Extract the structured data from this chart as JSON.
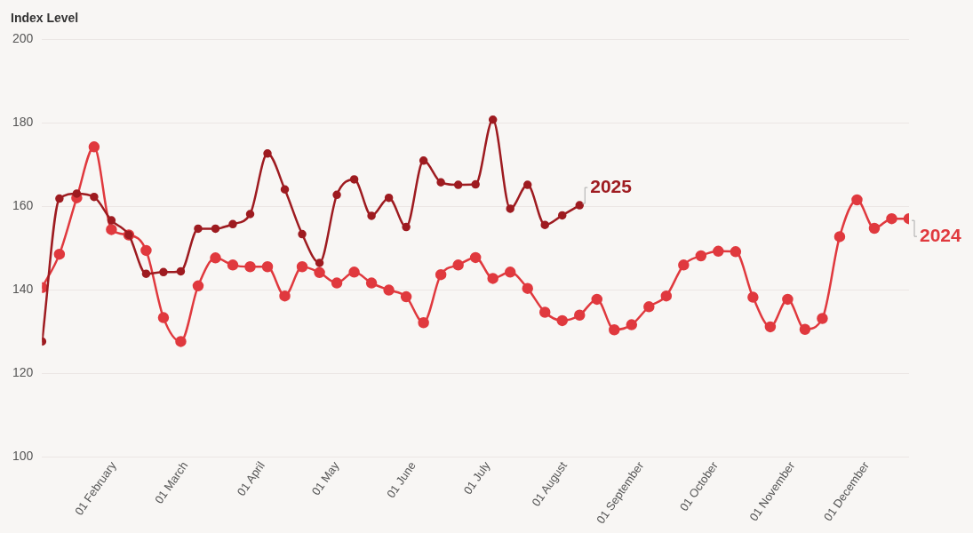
{
  "chart_data": {
    "type": "line",
    "ylabel": "Index Level",
    "x": [
      "--01-03",
      "--01-10",
      "--01-17",
      "--01-24",
      "--01-31",
      "--02-07",
      "--02-14",
      "--02-21",
      "--02-28",
      "--03-06",
      "--03-13",
      "--03-20",
      "--03-27",
      "--04-03",
      "--04-10",
      "--04-17",
      "--04-24",
      "--05-01",
      "--05-08",
      "--05-15",
      "--05-22",
      "--05-29",
      "--06-05",
      "--06-12",
      "--06-19",
      "--06-26",
      "--07-03",
      "--07-10",
      "--07-17",
      "--07-24",
      "--07-31",
      "--08-07",
      "--08-14",
      "--08-21",
      "--08-28",
      "--09-04",
      "--09-11",
      "--09-18",
      "--09-25",
      "--10-02",
      "--10-09",
      "--10-16",
      "--10-23",
      "--10-30",
      "--11-06",
      "--11-13",
      "--11-20",
      "--11-27",
      "--12-04",
      "--12-11",
      "--12-18"
    ],
    "series": [
      {
        "name": "2025",
        "color": "#9e1b20",
        "x": [
          "--01-03",
          "--01-10",
          "--01-17",
          "--01-24",
          "--01-31",
          "--02-07",
          "--02-14",
          "--02-21",
          "--02-28",
          "--03-06",
          "--03-13",
          "--03-20",
          "--03-27",
          "--04-03",
          "--04-10",
          "--04-17",
          "--04-24",
          "--05-01",
          "--05-08",
          "--05-15",
          "--05-22",
          "--05-29",
          "--06-05",
          "--06-12",
          "--06-19",
          "--06-26",
          "--07-03",
          "--07-10",
          "--07-17",
          "--07-24",
          "--07-31",
          "--08-07"
        ],
        "values": [
          127.6,
          161.8,
          163,
          162.2,
          156.6,
          153.1,
          143.8,
          144.2,
          144.4,
          154.6,
          154.6,
          155.7,
          158.1,
          172.6,
          164,
          153.3,
          146.4,
          162.7,
          166.4,
          157.7,
          162,
          155,
          170.9,
          165.7,
          165.1,
          165.2,
          180.7,
          159.4,
          165.1,
          155.5,
          157.8,
          160.2
        ]
      },
      {
        "name": "2024",
        "color": "#e0393e",
        "values": [
          140.5,
          148.5,
          162,
          174.2,
          154.4,
          153.1,
          149.4,
          133.3,
          127.6,
          140.9,
          147.6,
          145.9,
          145.5,
          145.5,
          138.5,
          145.5,
          144.1,
          141.6,
          144.2,
          141.6,
          139.9,
          138.3,
          132.1,
          143.6,
          145.9,
          147.7,
          142.7,
          144.2,
          140.3,
          134.6,
          132.6,
          133.9,
          137.7,
          130.4,
          131.6,
          135.9,
          138.5,
          145.9,
          148.1,
          149.2,
          149.1,
          138.2,
          131.1,
          137.7,
          130.5,
          133.1,
          152.7,
          161.5,
          154.7,
          157,
          157
        ]
      }
    ],
    "xlim": [
      "--01-03",
      "--12-18"
    ],
    "xticks": [
      {
        "value": "--02-01",
        "label": "01 February"
      },
      {
        "value": "--03-01",
        "label": "01 March"
      },
      {
        "value": "--04-01",
        "label": "01 April"
      },
      {
        "value": "--05-01",
        "label": "01 May"
      },
      {
        "value": "--06-01",
        "label": "01 June"
      },
      {
        "value": "--07-01",
        "label": "01 July"
      },
      {
        "value": "--08-01",
        "label": "01 August"
      },
      {
        "value": "--09-01",
        "label": "01 September"
      },
      {
        "value": "--10-01",
        "label": "01 October"
      },
      {
        "value": "--11-01",
        "label": "01 November"
      },
      {
        "value": "--12-01",
        "label": "01 December"
      }
    ],
    "ylim": [
      100,
      200
    ],
    "yticks": [
      100,
      120,
      140,
      160,
      180,
      200
    ],
    "grid": "y",
    "legend": false,
    "marker": "circle",
    "line_style": "solid"
  }
}
